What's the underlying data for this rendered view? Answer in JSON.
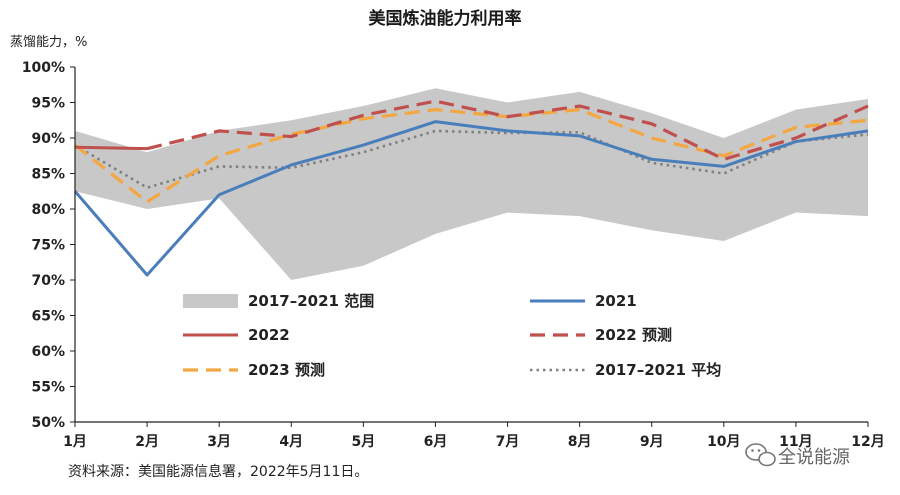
{
  "chart_data": {
    "type": "line",
    "title": "美国炼油能力利用率",
    "ylabel": "蒸馏能力，%",
    "xlabel": "",
    "categories": [
      "1月",
      "2月",
      "3月",
      "4月",
      "5月",
      "6月",
      "7月",
      "8月",
      "9月",
      "10月",
      "11月",
      "12月"
    ],
    "ylim": [
      50,
      100
    ],
    "yticks": [
      "50%",
      "55%",
      "60%",
      "65%",
      "70%",
      "75%",
      "80%",
      "85%",
      "90%",
      "95%",
      "100%"
    ],
    "range_band": {
      "name": "2017–2021 范围",
      "color": "#c8c8c8",
      "upper": [
        91,
        88,
        91,
        92.5,
        94.5,
        97,
        95,
        96.5,
        93.5,
        90,
        94,
        95.5
      ],
      "lower": [
        82.5,
        80,
        81.5,
        70,
        72,
        76.5,
        79.5,
        79,
        77,
        75.5,
        79.5,
        79
      ]
    },
    "series": [
      {
        "name": "2021",
        "style": "solid",
        "color": "#4a7ebb",
        "values": [
          82.5,
          70.7,
          82,
          86.2,
          89,
          92.3,
          91,
          90.3,
          87,
          86,
          89.5,
          91
        ]
      },
      {
        "name": "2022",
        "style": "solid",
        "color": "#c0504d",
        "values": [
          88.7,
          88.5,
          null,
          null,
          null,
          null,
          null,
          null,
          null,
          null,
          null,
          null
        ]
      },
      {
        "name": "2022 预测",
        "style": "dash",
        "color": "#c0504d",
        "values": [
          null,
          88.5,
          91,
          90.2,
          93.2,
          95.2,
          93,
          94.5,
          92,
          87,
          90,
          94.5
        ]
      },
      {
        "name": "2023 预测",
        "style": "dash",
        "color": "#f4a640",
        "values": [
          89,
          81,
          87.5,
          90.5,
          92.7,
          94,
          93,
          94,
          90,
          87.5,
          91.5,
          92.5
        ]
      },
      {
        "name": "2017–2021 平均",
        "style": "dot",
        "color": "#808080",
        "values": [
          89,
          83,
          86,
          85.8,
          88,
          91,
          90.7,
          90.8,
          86.5,
          85,
          89.5,
          90.5
        ]
      }
    ],
    "legend": {
      "placement": "inside-bottom",
      "entries": [
        {
          "label": "2017–2021 范围",
          "kind": "band"
        },
        {
          "label": "2021",
          "kind": "solid-blue"
        },
        {
          "label": "2022",
          "kind": "solid-red"
        },
        {
          "label": "2022 预测",
          "kind": "dash-red"
        },
        {
          "label": "2023 预测",
          "kind": "dash-orange"
        },
        {
          "label": "2017–2021 平均",
          "kind": "dot-grey"
        }
      ]
    },
    "grid": false
  },
  "source_note": "资料来源：美国能源信息署，2022年5月11日。",
  "watermark": {
    "text": "全说能源",
    "icon": "wechat-icon"
  }
}
